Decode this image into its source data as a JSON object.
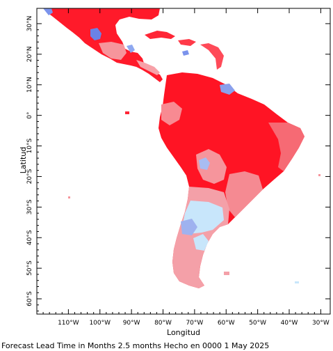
{
  "map": {
    "x_axis_title": "Longitud",
    "y_axis_title": "Latitud",
    "caption": "Forecast Lead Time in Months 2.5 months Hecho en 0000 1 May 2025",
    "lon_range": [
      -120,
      -27
    ],
    "lat_range": [
      -65,
      35
    ],
    "lon_ticks": [
      {
        "lon": -110,
        "label": "110°W"
      },
      {
        "lon": -100,
        "label": "100°W"
      },
      {
        "lon": -90,
        "label": "90°W"
      },
      {
        "lon": -80,
        "label": "80°W"
      },
      {
        "lon": -70,
        "label": "70°W"
      },
      {
        "lon": -60,
        "label": "60°W"
      },
      {
        "lon": -50,
        "label": "50°W"
      },
      {
        "lon": -40,
        "label": "40°W"
      },
      {
        "lon": -30,
        "label": "30°W"
      }
    ],
    "lat_ticks": [
      {
        "lat": 30,
        "label": "30°N"
      },
      {
        "lat": 20,
        "label": "20°N"
      },
      {
        "lat": 10,
        "label": "10°N"
      },
      {
        "lat": 0,
        "label": "0°"
      },
      {
        "lat": -10,
        "label": "10°S"
      },
      {
        "lat": -20,
        "label": "20°S"
      },
      {
        "lat": -30,
        "label": "30°S"
      },
      {
        "lat": -40,
        "label": "40°S"
      },
      {
        "lat": -50,
        "label": "50°S"
      },
      {
        "lat": -60,
        "label": "60°S"
      }
    ],
    "colors": {
      "strong_red": "#ff0f1e",
      "red": "#ff3040",
      "light_red": "#f87e86",
      "pale_red": "#f4a5ac",
      "pale_blue": "#c8e8ff",
      "light_blue": "#a8b8f0",
      "blue": "#5f7ce8"
    }
  }
}
